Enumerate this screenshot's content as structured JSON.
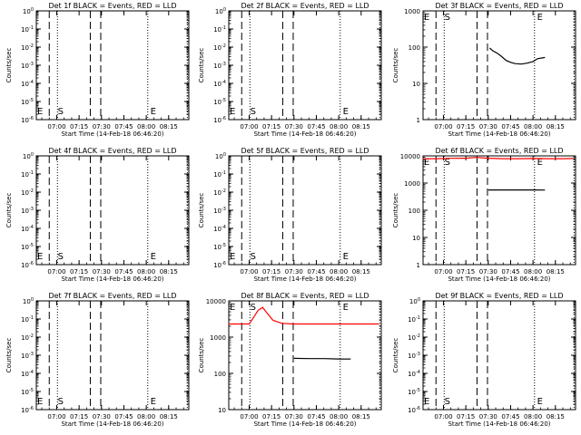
{
  "figure": {
    "xtick_labels": [
      "07:00",
      "07:15",
      "07:30",
      "07:45",
      "08:00",
      "08:15"
    ],
    "xlabel": "Start Time (14-Feb-18 06:46:20)",
    "ylabel": "Counts/sec",
    "marker_s": "S",
    "marker_e": "E",
    "colors": {
      "events": "#000000",
      "lld": "#ff0000",
      "axes": "#000000"
    }
  },
  "chart_data": [
    {
      "type": "line",
      "title": "Det 1f BLACK = Events, RED = LLD",
      "yscale": "log",
      "ytick_labels": [
        "10^0",
        "10^-1",
        "10^-2",
        "10^-3",
        "10^-4",
        "10^-5",
        "10^-6"
      ],
      "series": []
    },
    {
      "type": "line",
      "title": "Det 2f BLACK = Events, RED = LLD",
      "yscale": "log",
      "ytick_labels": [
        "10^0",
        "10^-1",
        "10^-2",
        "10^-3",
        "10^-4",
        "10^-5",
        "10^-6"
      ],
      "series": []
    },
    {
      "type": "line",
      "title": "Det 3f BLACK = Events, RED = LLD",
      "yscale": "log",
      "ylim": [
        1,
        1000
      ],
      "ytick_labels": [
        "1000",
        "100",
        "10",
        "1"
      ],
      "series": [
        {
          "color": "#000000",
          "x": [
            "07:31",
            "07:33",
            "07:36",
            "07:39",
            "07:42",
            "07:45",
            "07:48",
            "07:52",
            "07:56",
            "08:00",
            "08:03",
            "08:08"
          ],
          "y": [
            95,
            80,
            68,
            55,
            43,
            38,
            35,
            34,
            36,
            40,
            48,
            52
          ]
        }
      ]
    },
    {
      "type": "line",
      "title": "Det 4f BLACK = Events, RED = LLD",
      "yscale": "log",
      "ytick_labels": [
        "10^0",
        "10^-1",
        "10^-2",
        "10^-3",
        "10^-4",
        "10^-5",
        "10^-6"
      ],
      "series": []
    },
    {
      "type": "line",
      "title": "Det 5f BLACK = Events, RED = LLD",
      "yscale": "log",
      "ytick_labels": [
        "10^0",
        "10^-1",
        "10^-2",
        "10^-3",
        "10^-4",
        "10^-5",
        "10^-6"
      ],
      "series": []
    },
    {
      "type": "line",
      "title": "Det 6f BLACK = Events, RED = LLD",
      "yscale": "log",
      "ylim": [
        1,
        10000
      ],
      "ytick_labels": [
        "10000",
        "1000",
        "100",
        "10",
        "1"
      ],
      "series": [
        {
          "color": "#ff0000",
          "x": [
            "06:46",
            "06:55",
            "07:05",
            "07:15",
            "07:22",
            "07:30",
            "07:40",
            "07:50",
            "08:00",
            "08:10",
            "08:20",
            "08:27"
          ],
          "y": [
            7800,
            7900,
            8100,
            8200,
            8800,
            8200,
            7900,
            7900,
            8000,
            7900,
            7900,
            8000
          ]
        },
        {
          "color": "#000000",
          "x": [
            "07:30",
            "07:40",
            "07:50",
            "08:00",
            "08:08"
          ],
          "y": [
            560,
            560,
            560,
            560,
            555
          ]
        }
      ]
    },
    {
      "type": "line",
      "title": "Det 7f BLACK = Events, RED = LLD",
      "yscale": "log",
      "ytick_labels": [
        "10^0",
        "10^-1",
        "10^-2",
        "10^-3",
        "10^-4",
        "10^-5",
        "10^-6"
      ],
      "series": []
    },
    {
      "type": "line",
      "title": "Det 8f BLACK = Events, RED = LLD",
      "yscale": "log",
      "ylim": [
        10,
        10000
      ],
      "ytick_labels": [
        "10000",
        "1000",
        "100",
        "10"
      ],
      "series": [
        {
          "color": "#ff0000",
          "x": [
            "06:46",
            "06:55",
            "07:00",
            "07:03",
            "07:06",
            "07:09",
            "07:12",
            "07:16",
            "07:22",
            "07:30",
            "07:45",
            "08:00",
            "08:15",
            "08:27"
          ],
          "y": [
            2300,
            2300,
            2300,
            3500,
            5500,
            6600,
            4600,
            2900,
            2400,
            2300,
            2300,
            2300,
            2300,
            2300
          ]
        },
        {
          "color": "#000000",
          "x": [
            "07:30",
            "07:40",
            "07:50",
            "08:00",
            "08:08"
          ],
          "y": [
            260,
            255,
            255,
            250,
            248
          ]
        }
      ]
    },
    {
      "type": "line",
      "title": "Det 9f BLACK = Events, RED = LLD",
      "yscale": "log",
      "ytick_labels": [
        "10^0",
        "10^-1",
        "10^-2",
        "10^-3",
        "10^-4",
        "10^-5",
        "10^-6"
      ],
      "series": []
    }
  ]
}
